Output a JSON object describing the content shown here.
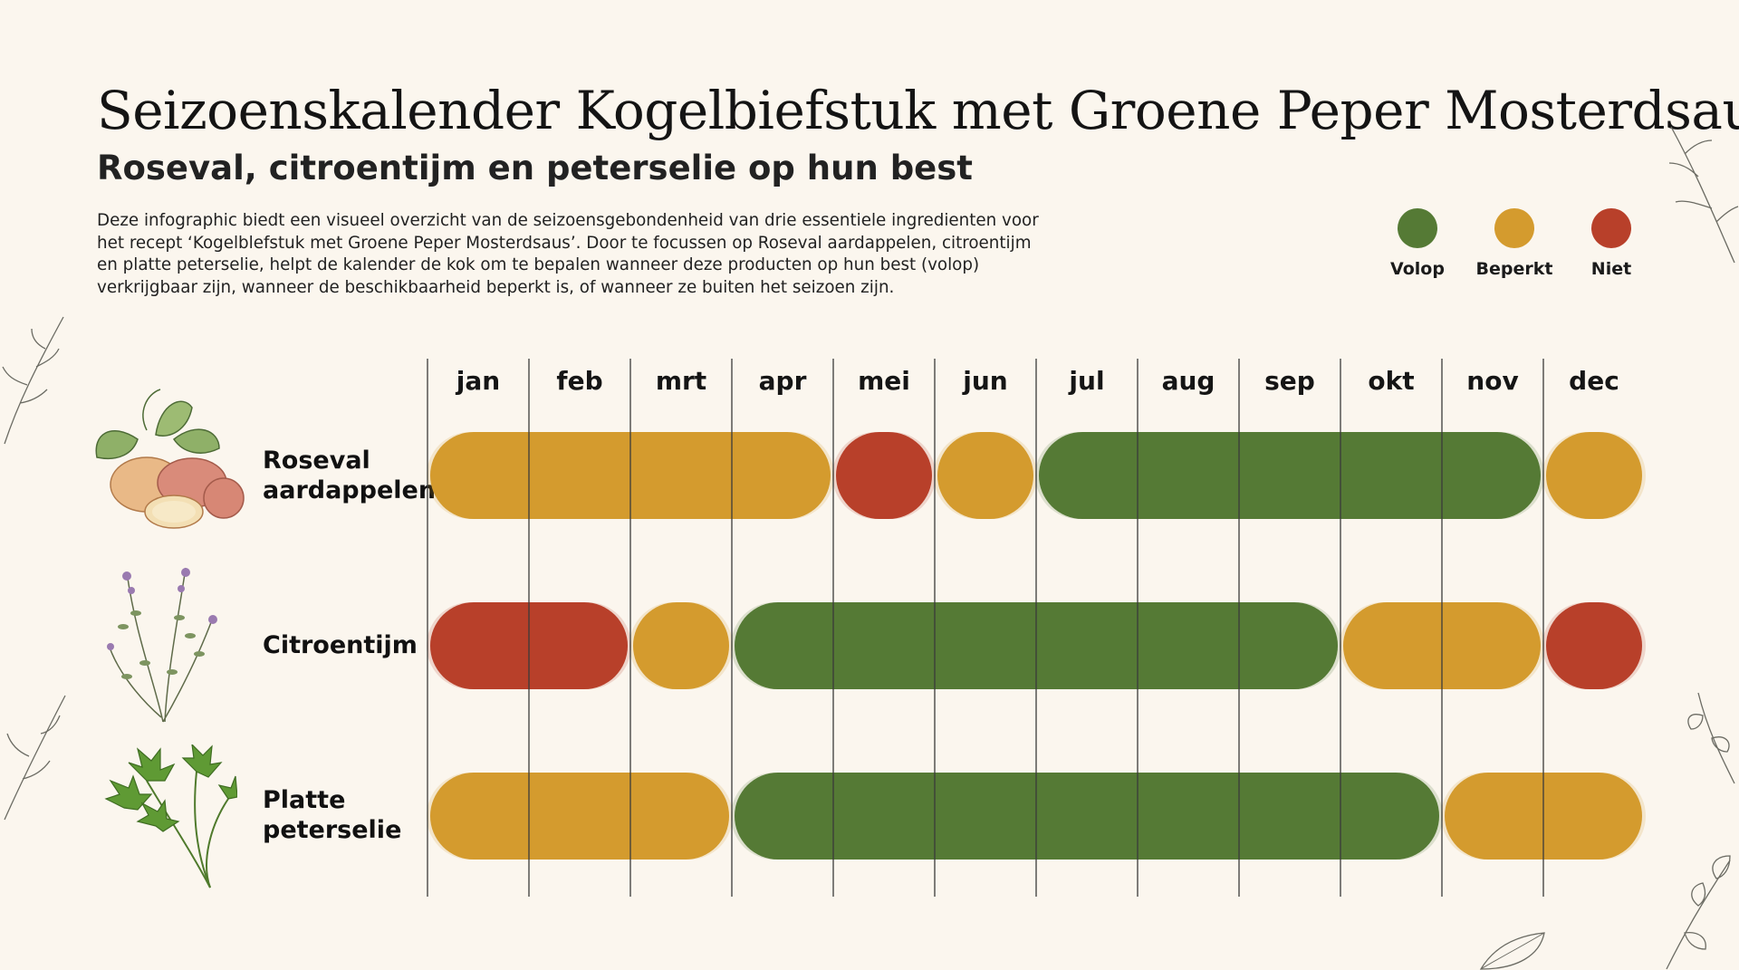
{
  "header": {
    "title": "Seizoenskalender Kogelbiefstuk met Groene Peper Mosterdsaus",
    "subtitle": "Roseval, citroentijm en peterselie op hun best",
    "description": "Deze infographic biedt een visueel overzicht van de seizoensgebondenheid van drie essentiele ingredienten voor het recept ‘Kogelblefstuk met Groene Peper Mosterdsaus’. Door te focussen op Roseval aardappelen, citroentijm en platte peterselie, helpt de kalender de kok om te bepalen wanneer deze producten op hun best (volop) verkrijgbaar zijn, wanneer de beschikbaarheid beperkt is, of wanneer ze buiten het seizoen zijn."
  },
  "legend": [
    {
      "label": "Volop",
      "status": "volop",
      "color": "#557a35"
    },
    {
      "label": "Beperkt",
      "status": "beperkt",
      "color": "#d49b2e"
    },
    {
      "label": "Niet",
      "status": "niet",
      "color": "#b8402a"
    }
  ],
  "chart_data": {
    "type": "table",
    "months": [
      "jan",
      "feb",
      "mrt",
      "apr",
      "mei",
      "jun",
      "jul",
      "aug",
      "sep",
      "okt",
      "nov",
      "dec"
    ],
    "series": [
      {
        "name": "Roseval aardappelen",
        "label_lines": [
          "Roseval",
          "aardappelen"
        ],
        "icon": "potato-icon",
        "segments": [
          {
            "status": "beperkt",
            "start": 0,
            "end": 4
          },
          {
            "status": "niet",
            "start": 4,
            "end": 5
          },
          {
            "status": "beperkt",
            "start": 5,
            "end": 6
          },
          {
            "status": "volop",
            "start": 6,
            "end": 11
          },
          {
            "status": "beperkt",
            "start": 11,
            "end": 12
          }
        ]
      },
      {
        "name": "Citroentijm",
        "label_lines": [
          "Citroentijm"
        ],
        "icon": "thyme-icon",
        "segments": [
          {
            "status": "niet",
            "start": 0,
            "end": 2
          },
          {
            "status": "beperkt",
            "start": 2,
            "end": 3
          },
          {
            "status": "volop",
            "start": 3,
            "end": 9
          },
          {
            "status": "beperkt",
            "start": 9,
            "end": 11
          },
          {
            "status": "niet",
            "start": 11,
            "end": 12
          }
        ]
      },
      {
        "name": "Platte peterselie",
        "label_lines": [
          "Platte",
          "peterselie"
        ],
        "icon": "parsley-icon",
        "segments": [
          {
            "status": "beperkt",
            "start": 0,
            "end": 3
          },
          {
            "status": "volop",
            "start": 3,
            "end": 10
          },
          {
            "status": "beperkt",
            "start": 10,
            "end": 12
          }
        ]
      }
    ]
  }
}
